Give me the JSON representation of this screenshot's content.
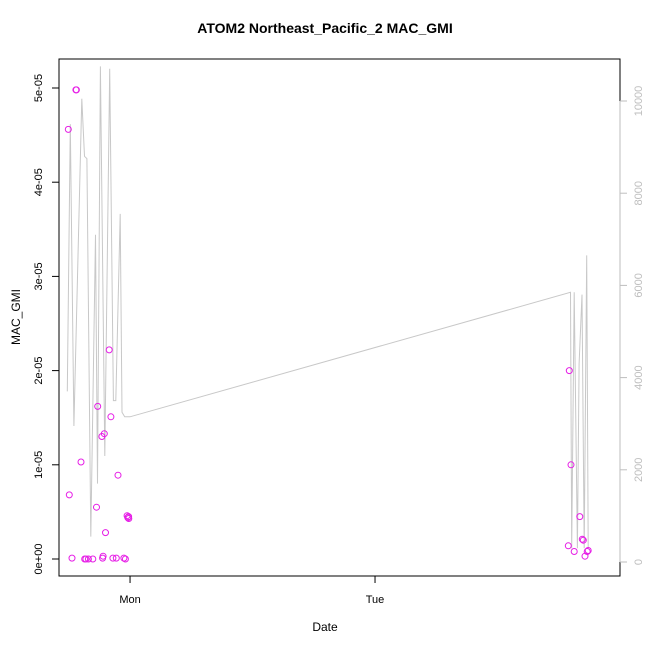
{
  "chart_data": {
    "type": "scatter",
    "title": "ATOM2 Northeast_Pacific_2 MAC_GMI",
    "xlabel": "Date",
    "ylabel": "MAC_GMI",
    "x_unit": "days since Mon 00:00",
    "xlim": [
      -0.29,
      2.0
    ],
    "ylim": [
      0,
      5e-05
    ],
    "x_ticks": [
      {
        "value": 0,
        "label": "Mon"
      },
      {
        "value": 1,
        "label": "Tue"
      }
    ],
    "y_ticks": [
      {
        "value": 0,
        "label": "0e+00"
      },
      {
        "value": 1e-05,
        "label": "1e-05"
      },
      {
        "value": 2e-05,
        "label": "2e-05"
      },
      {
        "value": 3e-05,
        "label": "3e-05"
      },
      {
        "value": 4e-05,
        "label": "4e-05"
      },
      {
        "value": 5e-05,
        "label": "5e-05"
      }
    ],
    "y2lim": [
      0,
      10000
    ],
    "y2_ticks": [
      {
        "value": 0,
        "label": "0"
      },
      {
        "value": 2000,
        "label": "2000"
      },
      {
        "value": 4000,
        "label": "4000"
      },
      {
        "value": 6000,
        "label": "6000"
      },
      {
        "value": 8000,
        "label": "8000"
      },
      {
        "value": 10000,
        "label": "10000"
      }
    ],
    "grid": false,
    "series": [
      {
        "kind": "points",
        "axis": "left",
        "color": "#e61ee6",
        "x": [
          -0.252,
          -0.248,
          -0.237,
          -0.221,
          -0.219,
          -0.2,
          -0.185,
          -0.18,
          -0.17,
          -0.152,
          -0.137,
          -0.132,
          -0.115,
          -0.112,
          -0.11,
          -0.105,
          -0.1,
          -0.085,
          -0.078,
          -0.07,
          -0.056,
          -0.049,
          -0.025,
          -0.019,
          -0.012,
          -0.009,
          -0.006,
          -0.005,
          1.789,
          1.793,
          1.8,
          1.813,
          1.836,
          1.846,
          1.85,
          1.857,
          1.866,
          1.87
        ],
        "y": [
          4.56e-05,
          6.8e-06,
          1e-07,
          4.98e-05,
          4.98e-05,
          1.03e-05,
          0,
          0,
          0,
          0,
          5.5e-06,
          1.62e-05,
          1.3e-05,
          1e-07,
          3e-07,
          1.33e-05,
          2.8e-06,
          2.22e-05,
          1.51e-05,
          1e-07,
          1e-07,
          8.9e-06,
          1e-07,
          0,
          4.6e-06,
          4.4e-06,
          4.5e-06,
          4.3e-06,
          1.4e-06,
          2e-05,
          1e-05,
          8e-07,
          4.5e-06,
          2.1e-06,
          2e-06,
          3e-07,
          8e-07,
          9e-07
        ]
      },
      {
        "kind": "line",
        "axis": "right",
        "color": "#c8c8c8",
        "x": [
          -0.256,
          -0.244,
          -0.229,
          -0.197,
          -0.186,
          -0.176,
          -0.16,
          -0.141,
          -0.133,
          -0.121,
          -0.103,
          -0.083,
          -0.068,
          -0.058,
          -0.04,
          -0.033,
          -0.022,
          -0.01,
          0.0,
          1.798,
          1.803,
          1.813,
          1.826,
          1.833,
          1.845,
          1.854,
          1.864,
          1.87
        ],
        "y": [
          3700,
          9500,
          2950,
          10050,
          8800,
          8750,
          550,
          7100,
          1700,
          10750,
          2300,
          10700,
          3500,
          3500,
          7550,
          3250,
          3150,
          3150,
          3150,
          5850,
          300,
          5850,
          300,
          4300,
          5800,
          300,
          6650,
          300
        ]
      }
    ]
  }
}
